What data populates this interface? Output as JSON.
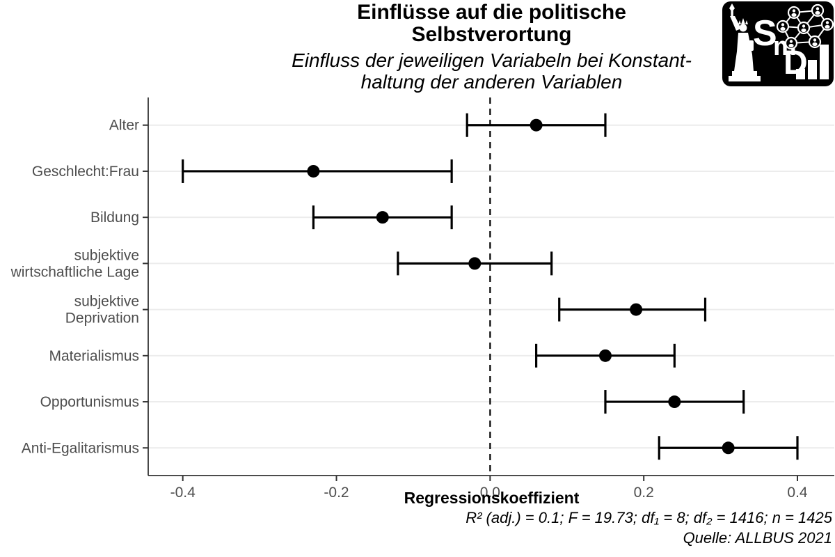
{
  "header": {
    "title_lines": [
      "Einflüsse auf die politische",
      "Selbstverortung"
    ],
    "subtitle_lines": [
      "Einfluss der jeweiligen Variabeln bei Konstant-",
      "haltung der anderen Variablen"
    ]
  },
  "logo": {
    "letters": [
      "S",
      "m",
      "D"
    ]
  },
  "chart_data": {
    "type": "scatter",
    "subtype": "coefficient-dot-whisker",
    "title": "Einflüsse auf die politische Selbstverortung",
    "subtitle": "Einfluss der jeweiligen Variabeln bei Konstanthaltung der anderen Variablen",
    "xlabel": "Regressionskoeffizient",
    "ylabel": "",
    "xlim": [
      -0.445,
      0.448
    ],
    "x_ticks": [
      -0.4,
      -0.2,
      0.0,
      0.2,
      0.4
    ],
    "x_tick_labels": [
      "-0.4",
      "-0.2",
      "0.0",
      "0.2",
      "0.4"
    ],
    "zero_line": 0.0,
    "grid": "horizontal-major-only",
    "legend": "none",
    "points": [
      {
        "label": "Alter",
        "label_lines": [
          "Alter"
        ],
        "estimate": 0.06,
        "ci_low": -0.03,
        "ci_high": 0.15
      },
      {
        "label": "Geschlecht:Frau",
        "label_lines": [
          "Geschlecht:Frau"
        ],
        "estimate": -0.23,
        "ci_low": -0.4,
        "ci_high": -0.05
      },
      {
        "label": "Bildung",
        "label_lines": [
          "Bildung"
        ],
        "estimate": -0.14,
        "ci_low": -0.23,
        "ci_high": -0.05
      },
      {
        "label": "subjektive wirtschaftliche Lage",
        "label_lines": [
          "subjektive",
          "wirtschaftliche Lage"
        ],
        "estimate": -0.02,
        "ci_low": -0.12,
        "ci_high": 0.08
      },
      {
        "label": "subjektive Deprivation",
        "label_lines": [
          "subjektive",
          "Deprivation"
        ],
        "estimate": 0.19,
        "ci_low": 0.09,
        "ci_high": 0.28
      },
      {
        "label": "Materialismus",
        "label_lines": [
          "Materialismus"
        ],
        "estimate": 0.15,
        "ci_low": 0.06,
        "ci_high": 0.24
      },
      {
        "label": "Opportunismus",
        "label_lines": [
          "Opportunismus"
        ],
        "estimate": 0.24,
        "ci_low": 0.15,
        "ci_high": 0.33
      },
      {
        "label": "Anti-Egalitarismus",
        "label_lines": [
          "Anti-Egalitarismus"
        ],
        "estimate": 0.31,
        "ci_low": 0.22,
        "ci_high": 0.4
      }
    ]
  },
  "footer": {
    "stats_line": "R² (adj.) = 0.1; F = 19.73; df₁ = 8; df₂ = 1416; n = 1425",
    "source_line": "Quelle: ALLBUS 2021"
  },
  "colors": {
    "point": "#000000",
    "errorbar": "#000000",
    "zero_line": "#000000",
    "axis_line": "#333333",
    "axis_text": "#4d4d4d",
    "gridline": "#ececec",
    "background": "#ffffff",
    "logo_bg": "#000000",
    "logo_fg": "#ffffff"
  }
}
